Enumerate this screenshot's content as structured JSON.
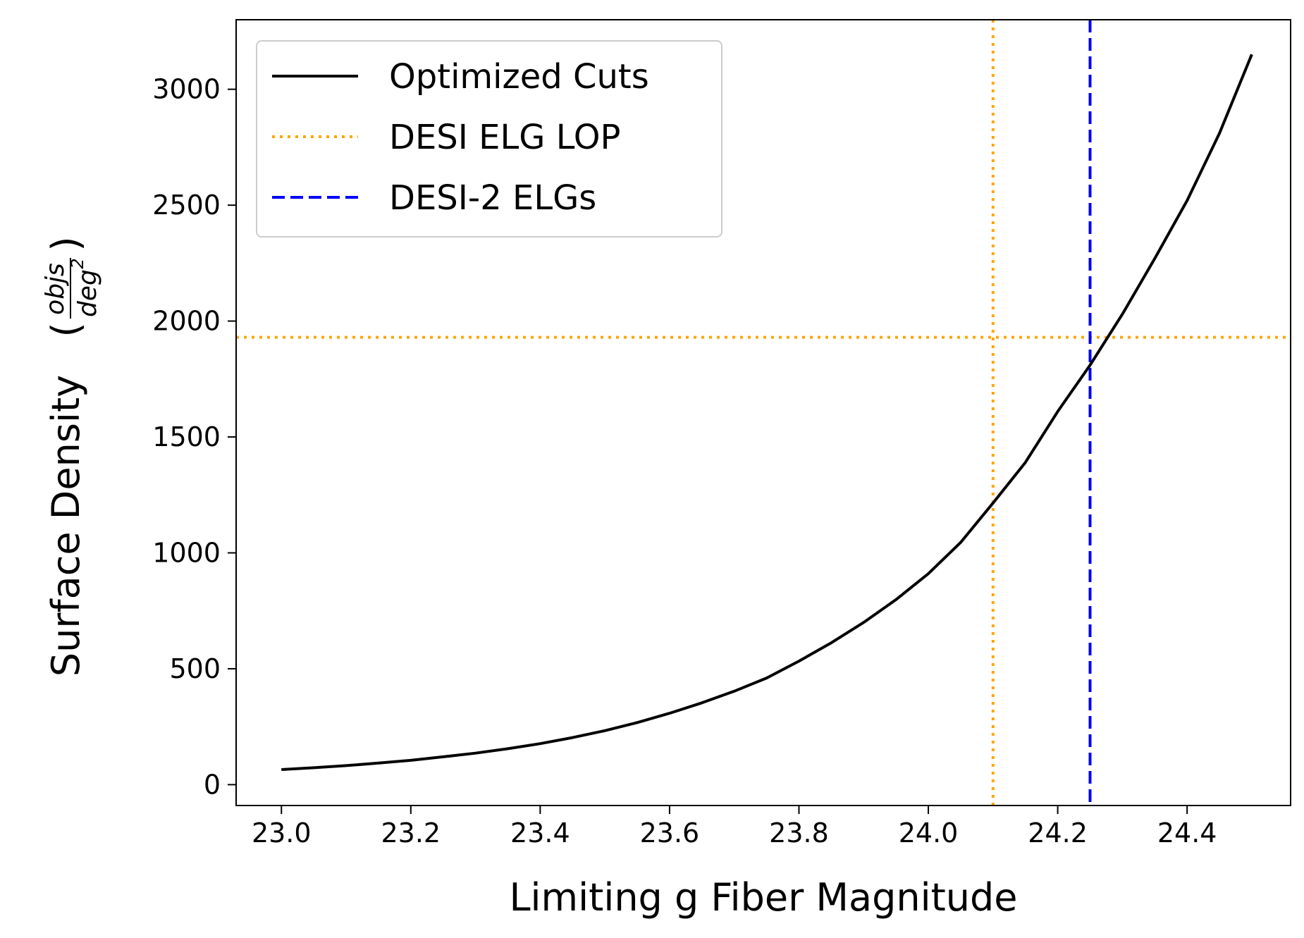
{
  "chart_data": {
    "type": "line",
    "xlabel": "Limiting g Fiber Magnitude",
    "ylabel": {
      "prefix": "Surface Density",
      "frac_numerator": "objs",
      "frac_denominator": "deg",
      "frac_denominator_exponent": "2"
    },
    "xlim": [
      22.93,
      24.56
    ],
    "ylim": [
      -90,
      3300
    ],
    "xticks": [
      23.0,
      23.2,
      23.4,
      23.6,
      23.8,
      24.0,
      24.2,
      24.4
    ],
    "xtick_labels": [
      "23.0",
      "23.2",
      "23.4",
      "23.6",
      "23.8",
      "24.0",
      "24.2",
      "24.4"
    ],
    "yticks": [
      0,
      500,
      1000,
      1500,
      2000,
      2500,
      3000
    ],
    "ytick_labels": [
      "0",
      "500",
      "1000",
      "1500",
      "2000",
      "2500",
      "3000"
    ],
    "grid": false,
    "legend_position": "top-left",
    "series": [
      {
        "name": "Optimized Cuts",
        "style": "solid",
        "color": "#000000",
        "x": [
          23.0,
          23.05,
          23.1,
          23.15,
          23.2,
          23.25,
          23.3,
          23.35,
          23.4,
          23.45,
          23.5,
          23.55,
          23.6,
          23.65,
          23.7,
          23.75,
          23.8,
          23.85,
          23.9,
          23.95,
          24.0,
          24.05,
          24.1,
          24.15,
          24.2,
          24.25,
          24.3,
          24.35,
          24.4,
          24.45,
          24.5
        ],
        "y": [
          65,
          73,
          82,
          93,
          105,
          120,
          136,
          155,
          177,
          203,
          233,
          268,
          308,
          353,
          403,
          460,
          533,
          612,
          700,
          798,
          910,
          1045,
          1215,
          1390,
          1610,
          1810,
          2030,
          2270,
          2520,
          2810,
          3150
        ]
      }
    ],
    "reference_lines": [
      {
        "name": "DESI ELG LOP",
        "orientation": "vertical",
        "value": 24.1,
        "style": "dotted",
        "color": "#FFA500"
      },
      {
        "name": "DESI ELG LOP",
        "orientation": "horizontal",
        "value": 1930,
        "style": "dotted",
        "color": "#FFA500"
      },
      {
        "name": "DESI-2 ELGs",
        "orientation": "vertical",
        "value": 24.25,
        "style": "dashed",
        "color": "#0000FF"
      }
    ],
    "legend": [
      {
        "label": "Optimized Cuts",
        "style": "solid",
        "color": "#000000"
      },
      {
        "label": "DESI ELG LOP",
        "style": "dotted",
        "color": "#FFA500"
      },
      {
        "label": "DESI-2 ELGs",
        "style": "dashed",
        "color": "#0000FF"
      }
    ]
  }
}
